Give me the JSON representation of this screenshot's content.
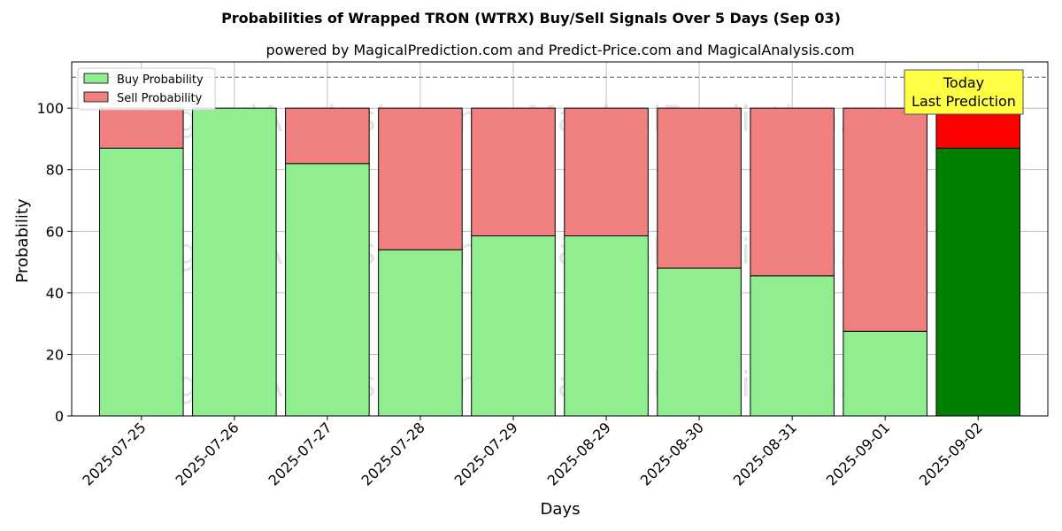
{
  "chart_data": {
    "type": "bar",
    "stacked": true,
    "title": "Probabilities of Wrapped TRON (WTRX) Buy/Sell Signals Over 5 Days (Sep 03)",
    "subtitle": "powered by MagicalPrediction.com and Predict-Price.com and MagicalAnalysis.com",
    "xlabel": "Days",
    "ylabel": "Probability",
    "ylim": [
      0,
      115
    ],
    "yticks": [
      0,
      20,
      40,
      60,
      80,
      100
    ],
    "reference_line": 110,
    "grid": true,
    "legend_position": "top-left",
    "categories": [
      "2025-07-25",
      "2025-07-26",
      "2025-07-27",
      "2025-07-28",
      "2025-07-29",
      "2025-08-29",
      "2025-08-30",
      "2025-08-31",
      "2025-09-01",
      "2025-09-02"
    ],
    "series": [
      {
        "name": "Buy Probability",
        "color": "#90ee90",
        "values": [
          87,
          100,
          82,
          54,
          58.5,
          58.5,
          48,
          45.5,
          27.5,
          87
        ]
      },
      {
        "name": "Sell Probability",
        "color": "#f08080",
        "values": [
          13,
          0,
          18,
          46,
          41.5,
          41.5,
          52,
          54.5,
          72.5,
          13
        ]
      }
    ],
    "highlight": {
      "index": 9,
      "buy_color": "#008000",
      "sell_color": "#ff0000"
    },
    "annotation": {
      "lines": [
        "Today",
        "Last Prediction"
      ],
      "color": "#ffff44"
    },
    "watermarks": [
      "MagicalAnalysis.com",
      "MagicalPrediction.com"
    ]
  }
}
